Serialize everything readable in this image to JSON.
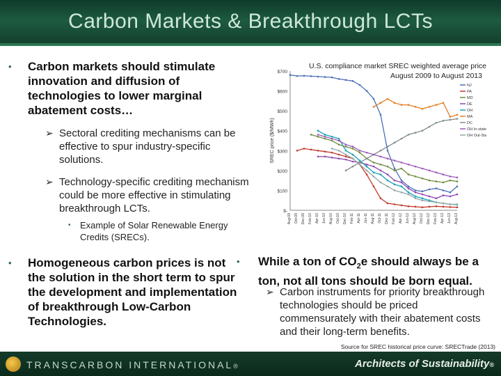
{
  "header": {
    "title": "Carbon Markets & Breakthrough LCTs"
  },
  "left": {
    "bullet1": "Carbon markets should stimulate innovation and diffusion of technologies to lower marginal abatement costs…",
    "sub1": "Sectoral crediting mechanisms can be effective to spur industry-specific solutions.",
    "sub2": "Technology-specific crediting mechanism could be more effective in stimulating breakthrough LCTs.",
    "subsub1": "Example of Solar Renewable Energy Credits (SRECs).",
    "bullet2": "Homogeneous carbon prices is not the solution in the short term to spur the development and implementation of breakthrough Low-Carbon Technologies."
  },
  "right": {
    "bullet_prefix": "While a ton of CO",
    "bullet_sub": "2",
    "bullet_suffix": "e should always be a ton, not all tons should be born equal.",
    "sub1": "Carbon instruments for priority breakthrough technologies should be priced commensurately with their abatement costs and their long-term benefits."
  },
  "chart_data": {
    "type": "line",
    "title_line1": "U.S. compliance market SREC weighted average price",
    "title_line2": "August 2009 to August 2013",
    "ylabel": "SREC price ($/MWh)",
    "ylim": [
      0,
      700
    ],
    "yticks": [
      "$700",
      "$600",
      "$500",
      "$400",
      "$300",
      "$200",
      "$100",
      "$-"
    ],
    "x_ticks": [
      "Aug-09",
      "Oct-09",
      "Dec-09",
      "Feb-10",
      "Apr-10",
      "Jun-10",
      "Aug-10",
      "Oct-10",
      "Dec-10",
      "Feb-11",
      "Apr-11",
      "Jun-11",
      "Aug-11",
      "Oct-11",
      "Dec-11",
      "Feb-12",
      "Apr-12",
      "Jun-12",
      "Aug-12",
      "Oct-12",
      "Dec-12",
      "Feb-13",
      "Apr-13",
      "Jun-13",
      "Aug-13"
    ],
    "series": [
      {
        "name": "NJ",
        "color": "#4a6fb5",
        "values": [
          680,
          675,
          676,
          674,
          672,
          670,
          668,
          660,
          655,
          650,
          630,
          600,
          560,
          480,
          300,
          210,
          150,
          120,
          100,
          95,
          105,
          110,
          100,
          90,
          120
        ]
      },
      {
        "name": "PA",
        "color": "#c0392b",
        "values": [
          null,
          300,
          310,
          305,
          300,
          295,
          290,
          280,
          270,
          260,
          230,
          180,
          120,
          60,
          35,
          30,
          25,
          20,
          18,
          15,
          18,
          20,
          18,
          16,
          15
        ]
      },
      {
        "name": "MD",
        "color": "#6e8b3d",
        "values": [
          null,
          null,
          null,
          380,
          370,
          360,
          350,
          330,
          320,
          310,
          290,
          260,
          240,
          230,
          220,
          200,
          210,
          180,
          170,
          160,
          150,
          145,
          140,
          150,
          145
        ]
      },
      {
        "name": "DE",
        "color": "#8e44ad",
        "values": [
          null,
          null,
          null,
          null,
          270,
          270,
          265,
          260,
          255,
          245,
          240,
          230,
          220,
          200,
          180,
          150,
          140,
          110,
          90,
          80,
          70,
          60,
          75,
          70,
          80
        ]
      },
      {
        "name": "OH",
        "color": "#16a0b5",
        "values": [
          null,
          null,
          null,
          null,
          400,
          380,
          370,
          360,
          300,
          280,
          250,
          220,
          190,
          180,
          150,
          130,
          120,
          90,
          70,
          60,
          50,
          40,
          35,
          30,
          28
        ]
      },
      {
        "name": "MA",
        "color": "#e67e22",
        "values": [
          null,
          null,
          null,
          null,
          null,
          null,
          null,
          null,
          null,
          null,
          null,
          null,
          520,
          540,
          560,
          540,
          530,
          530,
          520,
          510,
          520,
          530,
          540,
          470,
          480
        ]
      },
      {
        "name": "DC",
        "color": "#7f8c8d",
        "values": [
          null,
          null,
          null,
          null,
          null,
          null,
          null,
          null,
          200,
          220,
          240,
          260,
          280,
          300,
          320,
          340,
          360,
          380,
          390,
          400,
          420,
          440,
          450,
          455,
          460
        ]
      },
      {
        "name": "OH In-state",
        "color": "#9b59b6",
        "values": [
          null,
          null,
          null,
          null,
          380,
          370,
          360,
          350,
          330,
          320,
          300,
          290,
          280,
          270,
          260,
          250,
          240,
          230,
          220,
          210,
          200,
          190,
          180,
          170,
          165
        ]
      },
      {
        "name": "OH Out-State",
        "color": "#95a5a6",
        "values": [
          null,
          null,
          null,
          null,
          null,
          null,
          310,
          300,
          280,
          260,
          230,
          200,
          170,
          140,
          120,
          100,
          90,
          80,
          60,
          50,
          45,
          40,
          35,
          30,
          30
        ]
      }
    ]
  },
  "source": "Source for SREC historical price curve: SRECTrade (2013)",
  "footer": {
    "brand": "TRANSCARBON INTERNATIONAL",
    "brand_mark": "®",
    "tagline": "Architects of Sustainability",
    "tagline_mark": "®"
  }
}
